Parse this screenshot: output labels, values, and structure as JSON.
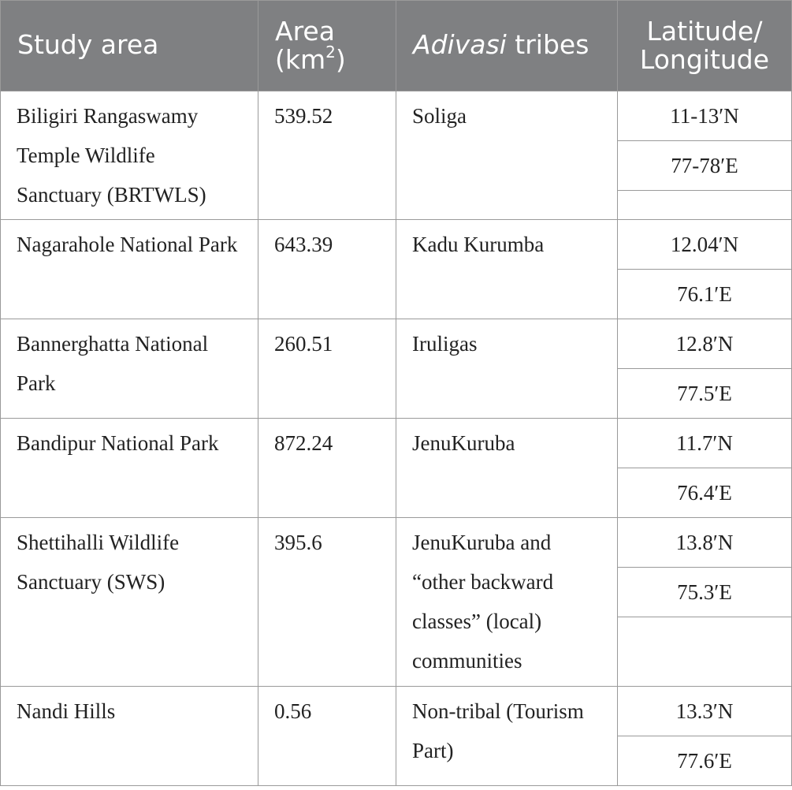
{
  "header": {
    "study_area": "Study area",
    "area_line1": "Area",
    "area_line2a": "(km",
    "area_sup": "2",
    "area_line2b": ")",
    "tribes_italic": "Adivasi",
    "tribes_rest": " tribes",
    "latlong_line1": "Latitude/",
    "latlong_line2": "Longitude"
  },
  "rows": [
    {
      "area_name": "Biligiri Rangaswamy Temple Wildlife Sanctuary (BRTWLS)",
      "area_km2": "539.52",
      "tribes": "Soliga",
      "lat": "11-13′N",
      "long": "77-78′E"
    },
    {
      "area_name": "Nagarahole National Park",
      "area_km2": "643.39",
      "tribes": "Kadu Kurumba",
      "lat": "12.04′N",
      "long": "76.1′E"
    },
    {
      "area_name": "Bannerghatta National Park",
      "area_km2": "260.51",
      "tribes": "Iruligas",
      "lat": "12.8′N",
      "long": "77.5′E"
    },
    {
      "area_name": "Bandipur National Park",
      "area_km2": "872.24",
      "tribes": "JenuKuruba",
      "lat": "11.7′N",
      "long": "76.4′E"
    },
    {
      "area_name": "Shettihalli Wildlife Sanctuary (SWS)",
      "area_km2": "395.6",
      "tribes": "JenuKuruba and “other backward classes” (local) communities",
      "lat": "13.8′N",
      "long": "75.3′E"
    },
    {
      "area_name": "Nandi Hills",
      "area_km2": "0.56",
      "tribes": "Non-tribal (Tourism Part)",
      "lat": "13.3′N",
      "long": "77.6′E"
    }
  ]
}
